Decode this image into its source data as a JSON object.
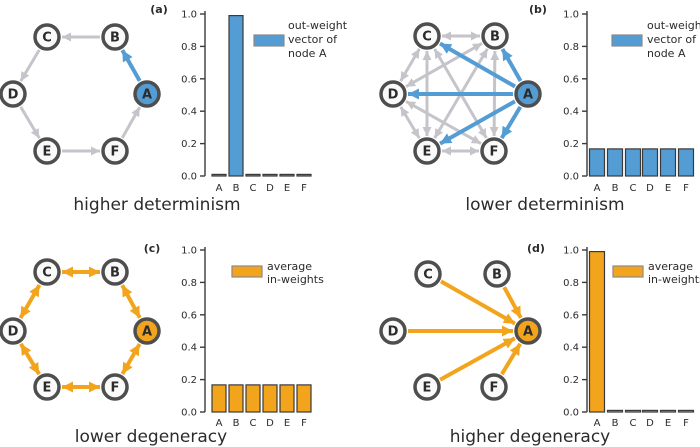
{
  "colors": {
    "blue": "#549CD4",
    "orange": "#F2A51C",
    "edge_gray": "#C4C4CA",
    "node_stroke": "#4E4E4E",
    "node_fill": "#FAFAFA",
    "bar_edge": "#3A3A3A",
    "spine": "#3A3A3A",
    "legend_edge": "#8A8A8A",
    "text": "#2B2B2B"
  },
  "figure": {
    "panels": [
      {
        "id": "a",
        "label": "(a)",
        "caption": "higher determinism",
        "caption_color": "blue"
      },
      {
        "id": "b",
        "label": "(b)",
        "caption": "lower determinism",
        "caption_color": "blue"
      },
      {
        "id": "c",
        "label": "(c)",
        "caption": "lower degeneracy",
        "caption_color": "orange"
      },
      {
        "id": "d",
        "label": "(d)",
        "caption": "higher degeneracy",
        "caption_color": "orange"
      }
    ]
  },
  "networks": {
    "a": {
      "nodes": [
        "A",
        "B",
        "C",
        "D",
        "E",
        "F"
      ],
      "highlight_node": "A",
      "highlight_color": "blue",
      "edges": [
        {
          "from": "B",
          "to": "C",
          "color": "gray",
          "double": false
        },
        {
          "from": "C",
          "to": "D",
          "color": "gray",
          "double": false
        },
        {
          "from": "D",
          "to": "E",
          "color": "gray",
          "double": false
        },
        {
          "from": "E",
          "to": "F",
          "color": "gray",
          "double": false
        },
        {
          "from": "F",
          "to": "A",
          "color": "gray",
          "double": false
        },
        {
          "from": "A",
          "to": "B",
          "color": "blue",
          "double": false
        }
      ]
    },
    "b": {
      "nodes": [
        "A",
        "B",
        "C",
        "D",
        "E",
        "F"
      ],
      "highlight_node": "A",
      "highlight_color": "blue",
      "edges": [
        {
          "from": "B",
          "to": "C",
          "color": "gray",
          "double": true
        },
        {
          "from": "B",
          "to": "D",
          "color": "gray",
          "double": true
        },
        {
          "from": "B",
          "to": "E",
          "color": "gray",
          "double": true
        },
        {
          "from": "B",
          "to": "F",
          "color": "gray",
          "double": true
        },
        {
          "from": "C",
          "to": "D",
          "color": "gray",
          "double": true
        },
        {
          "from": "C",
          "to": "E",
          "color": "gray",
          "double": true
        },
        {
          "from": "C",
          "to": "F",
          "color": "gray",
          "double": true
        },
        {
          "from": "D",
          "to": "E",
          "color": "gray",
          "double": true
        },
        {
          "from": "D",
          "to": "F",
          "color": "gray",
          "double": true
        },
        {
          "from": "E",
          "to": "F",
          "color": "gray",
          "double": true
        },
        {
          "from": "A",
          "to": "B",
          "color": "blue",
          "double": false
        },
        {
          "from": "A",
          "to": "C",
          "color": "blue",
          "double": false
        },
        {
          "from": "A",
          "to": "D",
          "color": "blue",
          "double": false
        },
        {
          "from": "A",
          "to": "E",
          "color": "blue",
          "double": false
        },
        {
          "from": "A",
          "to": "F",
          "color": "blue",
          "double": false
        }
      ]
    },
    "c": {
      "nodes": [
        "A",
        "B",
        "C",
        "D",
        "E",
        "F"
      ],
      "highlight_node": "A",
      "highlight_color": "orange",
      "edges": [
        {
          "from": "C",
          "to": "B",
          "color": "orange",
          "double": true
        },
        {
          "from": "B",
          "to": "A",
          "color": "orange",
          "double": true
        },
        {
          "from": "A",
          "to": "F",
          "color": "orange",
          "double": true
        },
        {
          "from": "F",
          "to": "E",
          "color": "orange",
          "double": true
        },
        {
          "from": "E",
          "to": "D",
          "color": "orange",
          "double": true
        },
        {
          "from": "D",
          "to": "C",
          "color": "orange",
          "double": true
        }
      ]
    },
    "d": {
      "nodes": [
        "A",
        "B",
        "C",
        "D",
        "E",
        "F"
      ],
      "highlight_node": "A",
      "highlight_color": "orange",
      "edges": [
        {
          "from": "C",
          "to": "A",
          "color": "orange",
          "double": false
        },
        {
          "from": "B",
          "to": "A",
          "color": "orange",
          "double": false
        },
        {
          "from": "D",
          "to": "A",
          "color": "orange",
          "double": false
        },
        {
          "from": "E",
          "to": "A",
          "color": "orange",
          "double": false
        },
        {
          "from": "F",
          "to": "A",
          "color": "orange",
          "double": false
        }
      ]
    }
  },
  "chart_data": [
    {
      "panel": "a",
      "type": "bar",
      "categories": [
        "A",
        "B",
        "C",
        "D",
        "E",
        "F"
      ],
      "values": [
        0.01,
        0.99,
        0.01,
        0.01,
        0.01,
        0.01
      ],
      "ylim": [
        0,
        1
      ],
      "yticks": [
        "0.0",
        "0.2",
        "0.4",
        "0.6",
        "0.8",
        "1.0"
      ],
      "bar_color": "blue",
      "legend_lines": [
        "out-weight",
        "vector of",
        "node A"
      ],
      "legend_label": "out-weight vector of node A",
      "xlabel": "",
      "ylabel": ""
    },
    {
      "panel": "b",
      "type": "bar",
      "categories": [
        "A",
        "B",
        "C",
        "D",
        "E",
        "F"
      ],
      "values": [
        0.167,
        0.167,
        0.167,
        0.167,
        0.167,
        0.167
      ],
      "ylim": [
        0,
        1
      ],
      "yticks": [
        "0.0",
        "0.2",
        "0.4",
        "0.6",
        "0.8",
        "1.0"
      ],
      "bar_color": "blue",
      "legend_lines": [
        "out-weight",
        "vector of",
        "node A"
      ],
      "legend_label": "out-weight vector of node A",
      "xlabel": "",
      "ylabel": ""
    },
    {
      "panel": "c",
      "type": "bar",
      "categories": [
        "A",
        "B",
        "C",
        "D",
        "E",
        "F"
      ],
      "values": [
        0.167,
        0.167,
        0.167,
        0.167,
        0.167,
        0.167
      ],
      "ylim": [
        0,
        1
      ],
      "yticks": [
        "0.0",
        "0.2",
        "0.4",
        "0.6",
        "0.8",
        "1.0"
      ],
      "bar_color": "orange",
      "legend_lines": [
        "average",
        "in-weights"
      ],
      "legend_label": "average in-weights",
      "xlabel": "",
      "ylabel": ""
    },
    {
      "panel": "d",
      "type": "bar",
      "categories": [
        "A",
        "B",
        "C",
        "D",
        "E",
        "F"
      ],
      "values": [
        0.99,
        0.01,
        0.01,
        0.01,
        0.01,
        0.01
      ],
      "ylim": [
        0,
        1
      ],
      "yticks": [
        "0.0",
        "0.2",
        "0.4",
        "0.6",
        "0.8",
        "1.0"
      ],
      "bar_color": "orange",
      "legend_lines": [
        "average",
        "in-weights"
      ],
      "legend_label": "average in-weights",
      "xlabel": "",
      "ylabel": ""
    }
  ]
}
